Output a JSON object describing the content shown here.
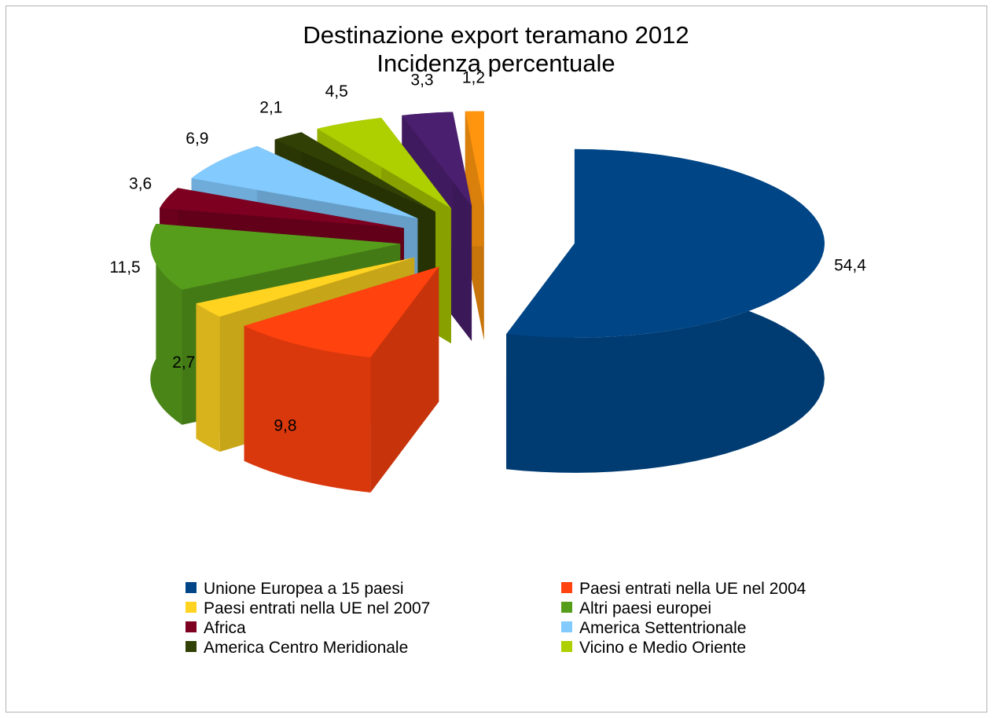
{
  "chart_data": {
    "type": "pie",
    "style": "3d-exploded",
    "title": "Destinazione export teramano 2012",
    "subtitle": "Incidenza percentuale",
    "legend_position": "bottom",
    "slices": [
      {
        "label": "Unione Europea a 15 paesi",
        "value": 54.4,
        "value_label": "54,4",
        "color": "#004586"
      },
      {
        "label": "Paesi entrati nella UE nel 2004",
        "value": 9.8,
        "value_label": "9,8",
        "color": "#ff420e"
      },
      {
        "label": "Paesi entrati nella UE nel 2007",
        "value": 2.7,
        "value_label": "2,7",
        "color": "#ffd320"
      },
      {
        "label": "Altri paesi europei",
        "value": 11.5,
        "value_label": "11,5",
        "color": "#579d1c"
      },
      {
        "label": "Africa",
        "value": 3.6,
        "value_label": "3,6",
        "color": "#7e0021"
      },
      {
        "label": "America Settentrionale",
        "value": 6.9,
        "value_label": "6,9",
        "color": "#83caff"
      },
      {
        "label": "America Centro Meridionale",
        "value": 2.1,
        "value_label": "2,1",
        "color": "#314004"
      },
      {
        "label": "Vicino e Medio Oriente",
        "value": 4.5,
        "value_label": "4,5",
        "color": "#aecf00"
      },
      {
        "label": "",
        "value": 3.3,
        "value_label": "3,3",
        "color": "#4b1f6f"
      },
      {
        "label": "",
        "value": 1.2,
        "value_label": "1,2",
        "color": "#ff950e"
      }
    ]
  }
}
